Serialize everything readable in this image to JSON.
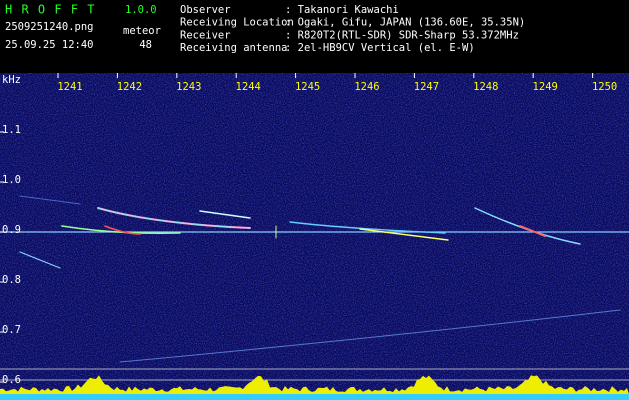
{
  "header": {
    "title": "H R O F F T",
    "version": "1.0.0",
    "file": "2509251240.png",
    "datetime": "25.09.25 12:40",
    "meteor_label": "meteor",
    "meteor_count": 48
  },
  "info": {
    "rows": [
      {
        "label": "Observer",
        "value": ": Takanori Kawachi"
      },
      {
        "label": "Receiving Location",
        "value": ": Ogaki, Gifu, JAPAN (136.60E, 35.35N)"
      },
      {
        "label": "Receiver",
        "value": ": R820T2(RTL-SDR) SDR-Sharp 53.372MHz"
      },
      {
        "label": "Receiving antenna",
        "value": ": 2el-HB9CV Vertical (el. E-W)"
      }
    ]
  },
  "spectrogram": {
    "y_unit": "kHz",
    "x_ticks": [
      1241,
      1242,
      1243,
      1244,
      1245,
      1246,
      1247,
      1248,
      1249,
      1250
    ],
    "y_ticks": [
      "1.1",
      "1.0",
      "0.9",
      "0.8",
      "0.7",
      "0.6"
    ]
  }
}
